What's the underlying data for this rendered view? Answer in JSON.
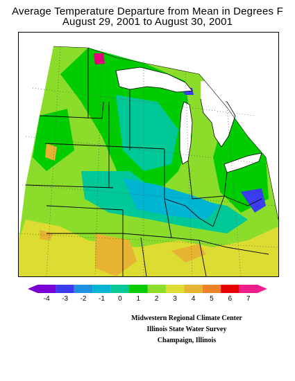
{
  "header": {
    "title_line1": "Average Temperature Departure from Mean in Degrees F",
    "title_line2": "August 29, 2001  to  August 30, 2001"
  },
  "legend": {
    "ticks": [
      "-4",
      "-3",
      "-2",
      "-1",
      "0",
      "1",
      "2",
      "3",
      "4",
      "5",
      "6",
      "7"
    ],
    "colors": [
      "#7a00d6",
      "#3b3bf0",
      "#1e90e0",
      "#00b4d2",
      "#00c896",
      "#00cc00",
      "#8cdc2c",
      "#dcdc32",
      "#e6b432",
      "#ee8228",
      "#e60000",
      "#f01e8c"
    ]
  },
  "map": {
    "palette": {
      "base": "#8cdc2c",
      "green": "#00cc00",
      "teal": "#00c896",
      "cyan": "#00b4d2",
      "blue": "#3b3bf0",
      "yellow": "#dcdc32",
      "orange": "#e6b432",
      "magenta": "#e6007a",
      "water": "#ffffff",
      "boundary": "#000000",
      "graticule": "#555555"
    }
  },
  "credits": {
    "line1": "Midwestern Regional Climate Center",
    "line2": "Illinois State Water Survey",
    "line3": "Champaign, Illinois"
  }
}
